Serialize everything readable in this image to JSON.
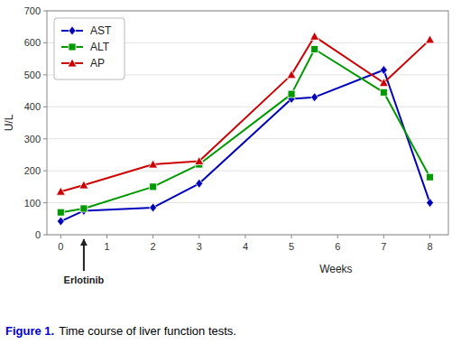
{
  "chart_data": {
    "type": "line",
    "x_label": "Weeks",
    "y_label": "U/L",
    "xlim": [
      -0.3,
      8.4
    ],
    "xticks": [
      0,
      1,
      2,
      3,
      4,
      5,
      6,
      7,
      8
    ],
    "ylim": [
      0,
      700
    ],
    "yticks": [
      0,
      100,
      200,
      300,
      400,
      500,
      600,
      700
    ],
    "grid": true,
    "legend": "upper left",
    "series": [
      {
        "name": "AST",
        "color": "#0000bb",
        "marker": "diamond",
        "x": [
          0,
          0.5,
          2,
          3,
          5,
          5.5,
          7,
          8
        ],
        "values": [
          42,
          75,
          85,
          160,
          425,
          430,
          515,
          100
        ]
      },
      {
        "name": "ALT",
        "color": "#009900",
        "marker": "square",
        "x": [
          0,
          0.5,
          2,
          3,
          5,
          5.5,
          7,
          8
        ],
        "values": [
          70,
          82,
          150,
          220,
          440,
          580,
          445,
          180
        ]
      },
      {
        "name": "AP",
        "color": "#cc0000",
        "marker": "triangle",
        "x": [
          0,
          0.5,
          2,
          3,
          5,
          5.5,
          7,
          8
        ],
        "values": [
          135,
          155,
          220,
          230,
          500,
          620,
          475,
          610
        ]
      }
    ],
    "annotations": [
      {
        "text": "Erlotinib",
        "x": 0.5
      }
    ],
    "caption": {
      "label": "Figure 1.",
      "text": "Time course of liver function tests.",
      "color": "#0000cc"
    }
  }
}
